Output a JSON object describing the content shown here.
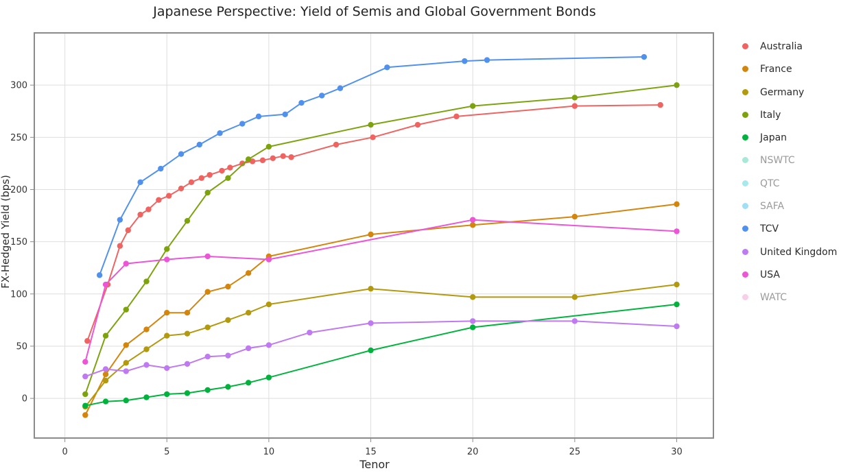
{
  "chart_data": {
    "type": "line",
    "title": "Japanese Perspective: Yield of Semis and Global Government Bonds",
    "xlabel": "Tenor",
    "ylabel": "FX-Hedged Yield (bps)",
    "xlim": [
      -1.5,
      31.8
    ],
    "ylim": [
      -38,
      350
    ],
    "xticks": [
      0,
      5,
      10,
      15,
      20,
      25,
      30
    ],
    "yticks": [
      0,
      50,
      100,
      150,
      200,
      250,
      300
    ],
    "grid": true,
    "legend_position": "right",
    "series": [
      {
        "name": "Australia",
        "color": "#EF6461",
        "visible": true,
        "x": [
          1.1,
          2.1,
          2.7,
          3.1,
          3.7,
          4.1,
          4.6,
          5.1,
          5.7,
          6.2,
          6.7,
          7.1,
          7.7,
          8.1,
          8.7,
          9.2,
          9.7,
          10.2,
          10.7,
          11.1,
          13.3,
          15.1,
          17.3,
          19.2,
          25.0,
          29.2
        ],
        "y": [
          55,
          109,
          146,
          161,
          176,
          181,
          190,
          194,
          201,
          207,
          211,
          214,
          218,
          221,
          225,
          227,
          228,
          230,
          232,
          231,
          243,
          250,
          262,
          270,
          280,
          281
        ]
      },
      {
        "name": "France",
        "color": "#D4850C",
        "visible": true,
        "x": [
          1,
          2,
          3,
          4,
          5,
          6,
          7,
          8,
          9,
          10,
          15,
          20,
          25,
          30
        ],
        "y": [
          -16,
          23,
          51,
          66,
          82,
          82,
          102,
          107,
          120,
          136,
          157,
          166,
          174,
          186
        ]
      },
      {
        "name": "Germany",
        "color": "#B3990E",
        "visible": true,
        "x": [
          1,
          2,
          3,
          4,
          5,
          6,
          7,
          8,
          9,
          10,
          15,
          20,
          25,
          30
        ],
        "y": [
          -8,
          17,
          34,
          47,
          60,
          62,
          68,
          75,
          82,
          90,
          105,
          97,
          97,
          109
        ]
      },
      {
        "name": "Italy",
        "color": "#7CA30E",
        "visible": true,
        "x": [
          1,
          2,
          3,
          4,
          5,
          6,
          7,
          8,
          9,
          10,
          15,
          20,
          25,
          30
        ],
        "y": [
          4,
          60,
          85,
          112,
          143,
          170,
          197,
          211,
          229,
          241,
          262,
          280,
          288,
          300
        ]
      },
      {
        "name": "Japan",
        "color": "#00B33C",
        "visible": true,
        "x": [
          1,
          2,
          3,
          4,
          5,
          6,
          7,
          8,
          9,
          10,
          15,
          20,
          30
        ],
        "y": [
          -7,
          -3,
          -2,
          1,
          4,
          5,
          8,
          11,
          15,
          20,
          46,
          68,
          90
        ]
      },
      {
        "name": "NSWTC",
        "color": "#5ED6B4",
        "visible": false
      },
      {
        "name": "QTC",
        "color": "#5CD6E0",
        "visible": false
      },
      {
        "name": "SAFA",
        "color": "#52C5EE",
        "visible": false
      },
      {
        "name": "TCV",
        "color": "#5191EE",
        "visible": true,
        "x": [
          1.7,
          2.7,
          3.7,
          4.7,
          5.7,
          6.6,
          7.6,
          8.7,
          9.5,
          10.8,
          11.6,
          12.6,
          13.5,
          15.8,
          19.6,
          20.7,
          28.4
        ],
        "y": [
          118,
          171,
          207,
          220,
          234,
          243,
          254,
          263,
          270,
          272,
          283,
          290,
          297,
          317,
          323,
          324,
          327
        ]
      },
      {
        "name": "United Kingdom",
        "color": "#C07AF1",
        "visible": true,
        "x": [
          1,
          2,
          3,
          4,
          5,
          6,
          7,
          8,
          9,
          10,
          12,
          15,
          20,
          25,
          30
        ],
        "y": [
          21,
          28,
          26,
          32,
          29,
          33,
          40,
          41,
          48,
          51,
          63,
          72,
          74,
          74,
          69
        ]
      },
      {
        "name": "USA",
        "color": "#EC55D6",
        "visible": true,
        "x": [
          1,
          2,
          3,
          5,
          7,
          10,
          20,
          30
        ],
        "y": [
          35,
          109,
          129,
          133,
          136,
          133,
          171,
          160
        ]
      },
      {
        "name": "WATC",
        "color": "#F4A6D4",
        "visible": false
      }
    ]
  }
}
